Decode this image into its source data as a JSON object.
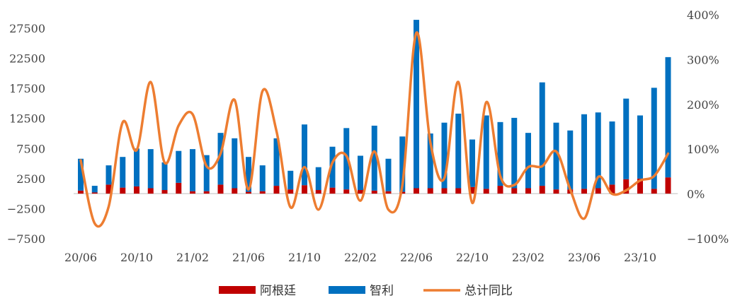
{
  "chart_data": {
    "type": "bar",
    "stacked": true,
    "title": "",
    "xlabel": "",
    "ylabel": "",
    "x_tick_labels": [
      "20/06",
      "20/10",
      "21/02",
      "21/06",
      "21/10",
      "22/02",
      "22/06",
      "22/10",
      "23/02",
      "23/06",
      "23/10"
    ],
    "y_left": {
      "ticks": [
        -7500,
        -2500,
        2500,
        7500,
        12500,
        17500,
        22500,
        27500
      ],
      "ylim": [
        -7500,
        27500
      ]
    },
    "y_right": {
      "ticks": [
        "-100%",
        "0%",
        "100%",
        "200%",
        "300%",
        "400%"
      ],
      "ylim": [
        -1.0,
        4.0
      ]
    },
    "legend_position": "bottom",
    "colors": {
      "argentina": "#c00000",
      "chile": "#0070c0",
      "yoy": "#ed7d31",
      "axis": "#bfbfbf"
    },
    "categories": [
      "2020-06",
      "2020-07",
      "2020-08",
      "2020-09",
      "2020-10",
      "2020-11",
      "2020-12",
      "2021-01",
      "2021-02",
      "2021-03",
      "2021-04",
      "2021-05",
      "2021-06",
      "2021-07",
      "2021-08",
      "2021-09",
      "2021-10",
      "2021-11",
      "2021-12",
      "2022-01",
      "2022-02",
      "2022-03",
      "2022-04",
      "2022-05",
      "2022-06",
      "2022-07",
      "2022-08",
      "2022-09",
      "2022-10",
      "2022-11",
      "2022-12",
      "2023-01",
      "2023-02",
      "2023-03",
      "2023-04",
      "2023-05",
      "2023-06",
      "2023-07",
      "2023-08",
      "2023-09",
      "2023-10",
      "2023-11",
      "2023-12"
    ],
    "series": [
      {
        "name": "阿根廷",
        "kind": "bar",
        "axis": "left",
        "values": [
          500,
          200,
          1500,
          1000,
          1200,
          900,
          600,
          1800,
          400,
          400,
          1500,
          900,
          300,
          400,
          1300,
          700,
          1400,
          600,
          1000,
          700,
          600,
          500,
          400,
          300,
          900,
          900,
          900,
          900,
          1100,
          800,
          1300,
          900,
          900,
          1300,
          700,
          700,
          800,
          900,
          1500,
          2400,
          2500,
          800,
          2700
        ]
      },
      {
        "name": "智利",
        "kind": "bar",
        "axis": "left",
        "values": [
          5300,
          1100,
          3200,
          5100,
          6300,
          6500,
          4600,
          5300,
          7000,
          6000,
          8600,
          8300,
          5800,
          4300,
          7900,
          3100,
          10100,
          3800,
          6800,
          10200,
          5700,
          10800,
          5400,
          9200,
          28000,
          9100,
          10900,
          12400,
          7900,
          12200,
          10600,
          11700,
          9200,
          17200,
          11100,
          9800,
          12400,
          12600,
          10500,
          13400,
          10500,
          16800,
          20000
        ]
      },
      {
        "name": "总计同比",
        "kind": "line",
        "axis": "right",
        "values": [
          0.75,
          -0.66,
          -0.28,
          1.6,
          0.98,
          2.5,
          0.7,
          1.53,
          1.78,
          0.62,
          0.9,
          2.1,
          0.1,
          2.3,
          1.4,
          -0.3,
          0.6,
          -0.35,
          0.7,
          0.85,
          -0.15,
          0.95,
          -0.35,
          0.2,
          3.6,
          1.15,
          0.35,
          2.5,
          -0.2,
          2.05,
          0.4,
          0.2,
          0.6,
          0.62,
          0.95,
          0.1,
          -0.55,
          0.38,
          0.0,
          0.08,
          0.3,
          0.4,
          0.9
        ]
      }
    ]
  }
}
